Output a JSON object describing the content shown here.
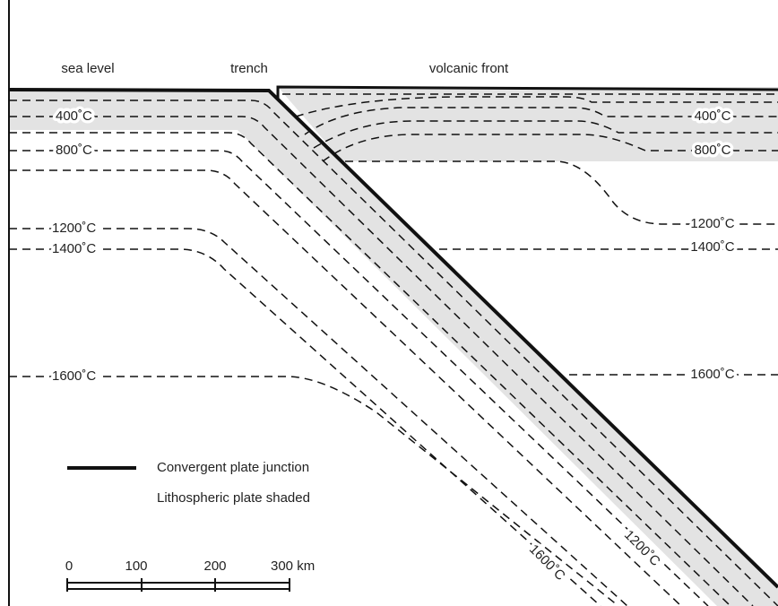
{
  "labels": {
    "sea_level": "sea level",
    "trench": "trench",
    "volcanic_front": "volcanic front"
  },
  "isotherms_left": [
    "400˚C",
    "800˚C",
    "1200˚C",
    "1400˚C",
    "1600˚C"
  ],
  "isotherms_right": [
    "400˚C",
    "800˚C",
    "1200˚C",
    "1400˚C",
    "1600˚C"
  ],
  "isotherms_slab": [
    "1600˚C",
    "1200˚C"
  ],
  "legend": [
    "Convergent plate junction",
    "Lithospheric plate shaded"
  ],
  "scale_bar": [
    "0",
    "100",
    "200",
    "300 km"
  ]
}
